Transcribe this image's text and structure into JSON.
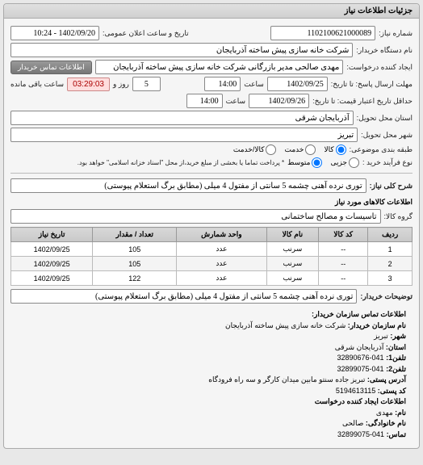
{
  "panel_title": "جزئیات اطلاعات نیاز",
  "fields": {
    "need_number_label": "شماره نیاز:",
    "need_number": "1102100621000089",
    "announce_label": "تاریخ و ساعت اعلان عمومی:",
    "announce_value": "1402/09/20 - 10:24",
    "buyer_org_label": "نام دستگاه خریدار:",
    "buyer_org": "شرکت خانه سازی پیش ساخته آذربایجان",
    "requester_label": "ایجاد کننده درخواست:",
    "requester": "مهدی صالحی مدیر بازرگانی شرکت خانه سازی پیش ساخته آذربایجان",
    "buyer_contact_btn": "اطلاعات تماس خریدار",
    "deadline_label": "مهلت ارسال پاسخ: تا تاریخ:",
    "deadline_date": "1402/09/25",
    "time_label": "ساعت",
    "deadline_time": "14:00",
    "day_label": "روز و",
    "days_remaining": "5",
    "remain_label": "ساعت باقی مانده",
    "timer": "03:29:03",
    "validity_label": "حداقل تاریخ اعتبار قیمت: تا تاریخ:",
    "validity_date": "1402/09/26",
    "validity_time": "14:00",
    "province_label": "استان محل تحویل:",
    "province": "آذربایجان شرقی",
    "city_label": "شهر محل تحویل:",
    "city": "تبریز",
    "class_label": "طبقه بندی موضوعی:",
    "class_opts": {
      "goods": "کالا",
      "service": "خدمت",
      "both": "کالا/خدمت"
    },
    "pay_label": "نوع فرآیند خرید :",
    "pay_opts": {
      "fine": "جزیی",
      "medium": "متوسط"
    },
    "pay_note": "* پرداخت تماما یا بخشی از مبلغ خرید،از محل \"اسناد خزانه اسلامی\" خواهد بود.",
    "desc_label": "شرح کلی نیاز:",
    "desc": "توری نرده آهنی چشمه 5 سانتی از مفتول 4 میلی (مطابق برگ استعلام پیوستی)",
    "goods_section": "اطلاعات کالاهای مورد نیاز",
    "group_label": "گروه کالا:",
    "group": "تاسیسات و مصالح ساختمانی",
    "buyer_notes_label": "توضیحات خریدار:",
    "buyer_notes": "توری نرده آهنی چشمه 5 سانتی از مفتول 4 میلی (مطابق برگ استعلام پیوستی)"
  },
  "table": {
    "columns": [
      "ردیف",
      "کد کالا",
      "نام کالا",
      "واحد شمارش",
      "تعداد / مقدار",
      "تاریخ نیاز"
    ],
    "rows": [
      [
        "1",
        "--",
        "سرنب",
        "عدد",
        "105",
        "1402/09/25"
      ],
      [
        "2",
        "--",
        "سرنب",
        "عدد",
        "105",
        "1402/09/25"
      ],
      [
        "3",
        "--",
        "سرنب",
        "عدد",
        "122",
        "1402/09/25"
      ]
    ]
  },
  "contact": {
    "section1_title": "اطلاعات تماس سازمان خریدار:",
    "org_name_label": "نام سازمان خریدار:",
    "org_name": "شرکت خانه سازی پیش ساخته آذربایجان",
    "city_label": "شهر:",
    "city": "تبریز",
    "province_label": "استان:",
    "province": "آذربایجان شرقی",
    "phone1_label": "تلفن1:",
    "phone1": "041-32890676",
    "phone2_label": "تلفن2:",
    "phone2": "041-32899075",
    "address_label": "آدرس پستی:",
    "address": "تبریز جاده سنتو مابین میدان کارگر و سه راه فرودگاه",
    "postal_label": "کد پستی:",
    "postal": "5194613115",
    "section2_title": "اطلاعات ایجاد کننده درخواست",
    "name_label": "نام:",
    "name": "مهدی",
    "family_label": "نام خانوادگی:",
    "family": "صالحی",
    "contact_phone_label": "تماس:",
    "contact_phone": "041-32899075"
  }
}
